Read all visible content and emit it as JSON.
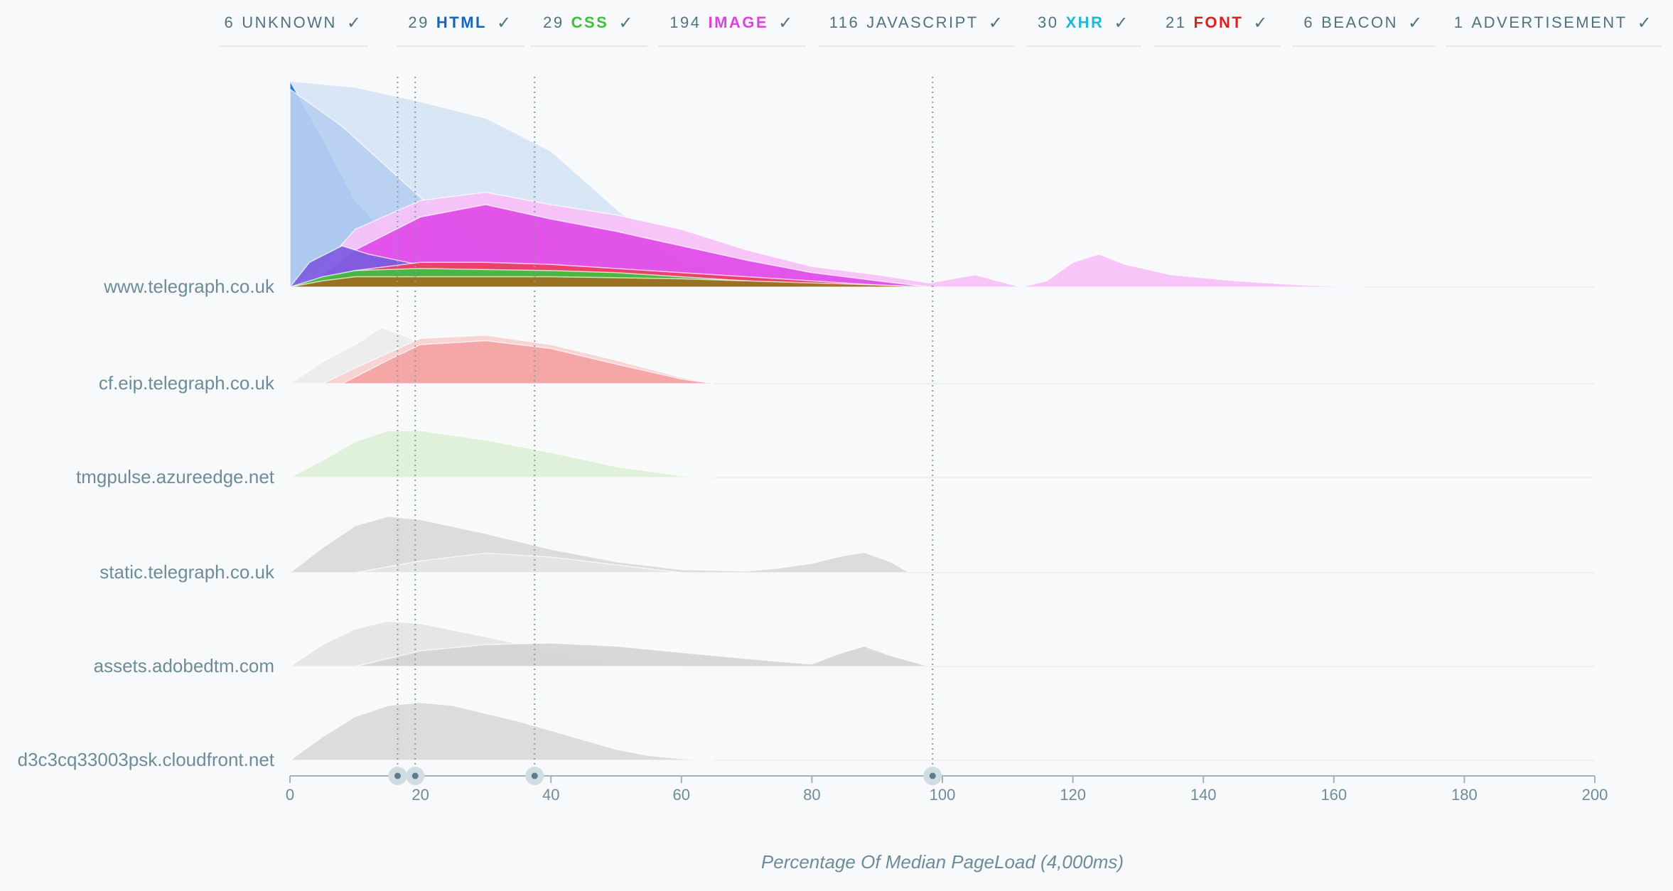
{
  "filters": [
    {
      "count": "6",
      "label": "UNKNOWN",
      "color": "#4f7380",
      "check": "✓"
    },
    {
      "count": "29",
      "label": "HTML",
      "color": "#1565c0",
      "check": "✓"
    },
    {
      "count": "29",
      "label": "CSS",
      "color": "#3cc13c",
      "check": "✓"
    },
    {
      "count": "194",
      "label": "IMAGE",
      "color": "#e040e0",
      "check": "✓"
    },
    {
      "count": "116",
      "label": "JAVASCRIPT",
      "color": "#4f7380",
      "check": "✓"
    },
    {
      "count": "30",
      "label": "XHR",
      "color": "#20b8d8",
      "check": "✓"
    },
    {
      "count": "21",
      "label": "FONT",
      "color": "#e02020",
      "check": "✓"
    },
    {
      "count": "6",
      "label": "BEACON",
      "color": "#4f7380",
      "check": "✓"
    },
    {
      "count": "1",
      "label": "ADVERTISEMENT",
      "color": "#4f7380",
      "check": "✓"
    }
  ],
  "chart_data": {
    "type": "area",
    "xlabel": "Percentage Of Median PageLoad (4,000ms)",
    "xlim": [
      0,
      200
    ],
    "xticks": [
      0,
      20,
      40,
      60,
      80,
      100,
      120,
      140,
      160,
      180,
      200
    ],
    "markers": [
      16.5,
      19.2,
      37.5,
      98.5
    ],
    "rows": [
      {
        "host": "www.telegraph.co.uk",
        "series": [
          {
            "name": "HTML",
            "color": "#d6e4f5",
            "x": [
              0,
              10,
              20,
              30,
              40,
              50,
              60,
              70,
              80,
              90,
              100
            ],
            "y": [
              1.0,
              0.97,
              0.9,
              0.82,
              0.66,
              0.38,
              0.12,
              0.04,
              0.01,
              0.0,
              0.0
            ]
          },
          {
            "name": "HTML",
            "color": "#1a73dd",
            "x": [
              0,
              5,
              10,
              15,
              20,
              25,
              30
            ],
            "y": [
              1.0,
              0.72,
              0.42,
              0.25,
              0.12,
              0.04,
              0.0
            ]
          },
          {
            "name": "HTML",
            "color": "#b9cff0",
            "x": [
              0,
              8,
              16,
              24,
              32,
              40
            ],
            "y": [
              0.96,
              0.78,
              0.55,
              0.32,
              0.12,
              0.0
            ]
          },
          {
            "name": "IMAGE",
            "color": "#f7c0f7",
            "x": [
              0,
              5,
              10,
              20,
              30,
              40,
              50,
              60,
              70,
              80,
              90,
              98,
              105,
              112,
              116,
              120,
              124,
              128,
              135,
              145,
              155,
              165
            ],
            "y": [
              0.0,
              0.1,
              0.28,
              0.42,
              0.46,
              0.4,
              0.35,
              0.28,
              0.18,
              0.1,
              0.06,
              0.02,
              0.06,
              0.0,
              0.03,
              0.12,
              0.16,
              0.11,
              0.06,
              0.03,
              0.01,
              0.0
            ]
          },
          {
            "name": "IMAGE",
            "color": "#e04ae8",
            "x": [
              0,
              5,
              10,
              20,
              30,
              40,
              50,
              60,
              70,
              80,
              90,
              98
            ],
            "y": [
              0.0,
              0.06,
              0.18,
              0.34,
              0.4,
              0.33,
              0.27,
              0.2,
              0.13,
              0.07,
              0.03,
              0.0
            ]
          },
          {
            "name": "JAVASCRIPT",
            "color": "#7b5ce0",
            "x": [
              0,
              3,
              8,
              12,
              18,
              25,
              32,
              40
            ],
            "y": [
              0.0,
              0.12,
              0.2,
              0.16,
              0.12,
              0.08,
              0.03,
              0.0
            ]
          },
          {
            "name": "FONT",
            "color": "#e84060",
            "x": [
              0,
              10,
              20,
              30,
              40,
              50,
              60,
              70,
              80,
              90,
              98
            ],
            "y": [
              0.0,
              0.08,
              0.12,
              0.12,
              0.11,
              0.09,
              0.07,
              0.05,
              0.03,
              0.01,
              0.0
            ]
          },
          {
            "name": "CSS",
            "color": "#3cc13c",
            "x": [
              0,
              5,
              10,
              20,
              30,
              40,
              50,
              60,
              70,
              80,
              90,
              98
            ],
            "y": [
              0.0,
              0.05,
              0.08,
              0.09,
              0.085,
              0.08,
              0.07,
              0.05,
              0.03,
              0.01,
              0.005,
              0.0
            ]
          },
          {
            "name": "UNKNOWN",
            "color": "#9e6b1e",
            "x": [
              0,
              5,
              10,
              20,
              30,
              40,
              50,
              60,
              70,
              80,
              90,
              98
            ],
            "y": [
              0.0,
              0.03,
              0.05,
              0.05,
              0.05,
              0.05,
              0.045,
              0.04,
              0.03,
              0.02,
              0.01,
              0.0
            ]
          }
        ]
      },
      {
        "host": "cf.eip.telegraph.co.uk",
        "series": [
          {
            "name": "UNKNOWN",
            "color": "#ececec",
            "x": [
              0,
              5,
              10,
              14,
              18,
              22,
              26,
              30
            ],
            "y": [
              0.0,
              0.28,
              0.5,
              0.72,
              0.6,
              0.4,
              0.18,
              0.0
            ]
          },
          {
            "name": "FONT",
            "color": "#f9d0d0",
            "x": [
              5,
              10,
              20,
              30,
              40,
              50,
              60,
              65
            ],
            "y": [
              0.0,
              0.2,
              0.58,
              0.62,
              0.5,
              0.3,
              0.08,
              0.0
            ]
          },
          {
            "name": "FONT",
            "color": "#f4a3a3",
            "x": [
              8,
              15,
              20,
              30,
              40,
              50,
              60,
              65
            ],
            "y": [
              0.0,
              0.3,
              0.5,
              0.55,
              0.45,
              0.25,
              0.06,
              0.0
            ]
          }
        ]
      },
      {
        "host": "tmgpulse.azureedge.net",
        "series": [
          {
            "name": "CSS",
            "color": "#dcefd8",
            "x": [
              0,
              5,
              10,
              15,
              20,
              30,
              40,
              50,
              60,
              65
            ],
            "y": [
              0.0,
              0.22,
              0.46,
              0.6,
              0.6,
              0.48,
              0.32,
              0.14,
              0.02,
              0.0
            ]
          }
        ]
      },
      {
        "host": "static.telegraph.co.uk",
        "series": [
          {
            "name": "JAVASCRIPT",
            "color": "#d9d9d9",
            "x": [
              0,
              5,
              10,
              15,
              20,
              30,
              40,
              50,
              60,
              70,
              75,
              80,
              85,
              88,
              92,
              95
            ],
            "y": [
              0.0,
              0.32,
              0.6,
              0.72,
              0.68,
              0.5,
              0.3,
              0.14,
              0.04,
              0.02,
              0.06,
              0.12,
              0.22,
              0.26,
              0.14,
              0.0
            ]
          },
          {
            "name": "JAVASCRIPT",
            "color": "#e4e4e4",
            "x": [
              10,
              20,
              30,
              40,
              50,
              60
            ],
            "y": [
              0.0,
              0.15,
              0.25,
              0.2,
              0.1,
              0.0
            ]
          }
        ]
      },
      {
        "host": "assets.adobedtm.com",
        "series": [
          {
            "name": "JAVASCRIPT",
            "color": "#e4e4e4",
            "x": [
              0,
              5,
              10,
              15,
              20,
              30,
              40,
              50,
              60
            ],
            "y": [
              0.0,
              0.28,
              0.48,
              0.58,
              0.55,
              0.38,
              0.2,
              0.06,
              0.0
            ]
          },
          {
            "name": "JAVASCRIPT",
            "color": "#d5d5d5",
            "x": [
              10,
              20,
              30,
              40,
              50,
              60,
              70,
              80,
              84,
              88,
              92,
              98
            ],
            "y": [
              0.0,
              0.2,
              0.28,
              0.3,
              0.26,
              0.18,
              0.1,
              0.03,
              0.16,
              0.26,
              0.14,
              0.0
            ]
          }
        ]
      },
      {
        "host": "d3c3cq33003psk.cloudfront.net",
        "series": [
          {
            "name": "JAVASCRIPT",
            "color": "#d9d9d9",
            "x": [
              0,
              5,
              10,
              15,
              20,
              25,
              30,
              35,
              40,
              45,
              50,
              55,
              60,
              65
            ],
            "y": [
              0.0,
              0.3,
              0.56,
              0.7,
              0.74,
              0.7,
              0.6,
              0.5,
              0.38,
              0.26,
              0.14,
              0.06,
              0.02,
              0.0
            ]
          }
        ]
      }
    ]
  }
}
